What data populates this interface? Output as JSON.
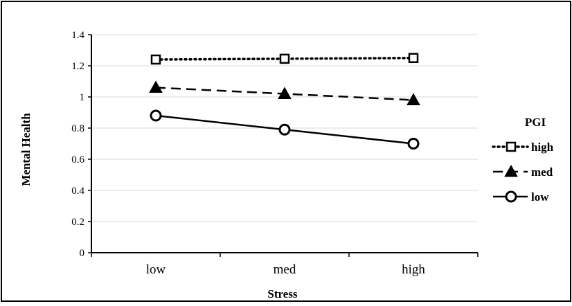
{
  "chart_data": {
    "type": "line",
    "categories": [
      "low",
      "med",
      "high"
    ],
    "xlabel": "Stress",
    "ylabel": "Mental Health",
    "ylim": [
      0,
      1.4
    ],
    "yticks": [
      "0",
      "0.2",
      "0.4",
      "0.6",
      "0.8",
      "1",
      "1.2",
      "1.4"
    ],
    "grid": true,
    "legend": {
      "title": "PGI",
      "placement": "right"
    },
    "series": [
      {
        "name": "high",
        "values": [
          1.24,
          1.245,
          1.25
        ],
        "marker": "square",
        "dash": "dotted",
        "color": "#000000"
      },
      {
        "name": "med",
        "values": [
          1.06,
          1.02,
          0.98
        ],
        "marker": "triangle",
        "dash": "dashed",
        "color": "#000000"
      },
      {
        "name": "low",
        "values": [
          0.88,
          0.79,
          0.7
        ],
        "marker": "circle",
        "dash": "solid",
        "color": "#000000"
      }
    ]
  }
}
